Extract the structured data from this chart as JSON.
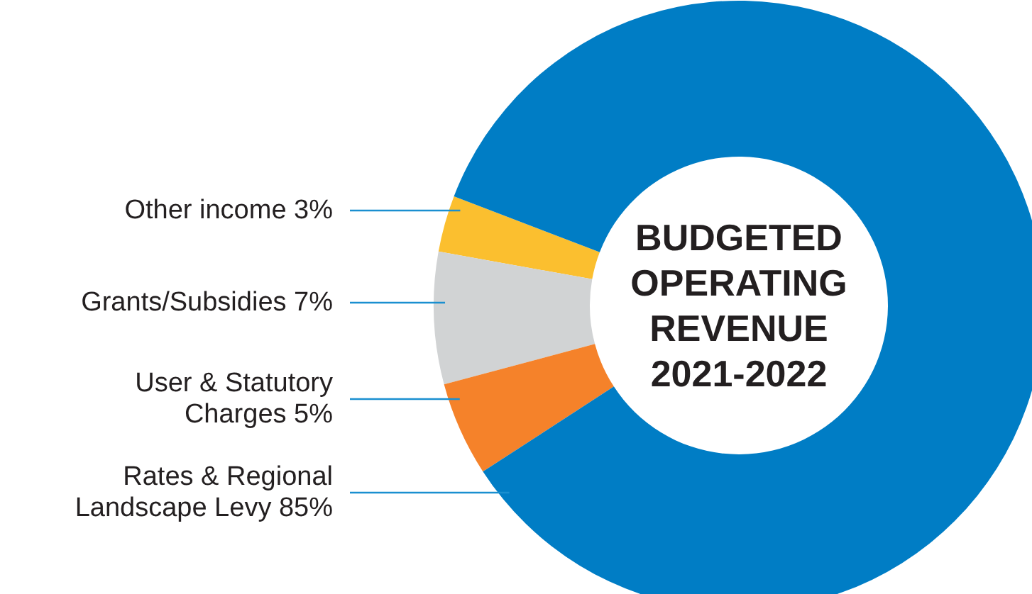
{
  "chart_data": {
    "type": "donut",
    "title": "BUDGETED OPERATING REVENUE 2021-2022",
    "categories": [
      "Other income 3%",
      "Grants/Subsidies 7%",
      "User & Statutory Charges 5%",
      "Rates & Regional Landscape Levy 85%"
    ],
    "values": [
      3,
      7,
      5,
      85
    ],
    "colors": [
      "#fbbf2f",
      "#d1d3d4",
      "#f5822a",
      "#007dc5"
    ]
  }
}
